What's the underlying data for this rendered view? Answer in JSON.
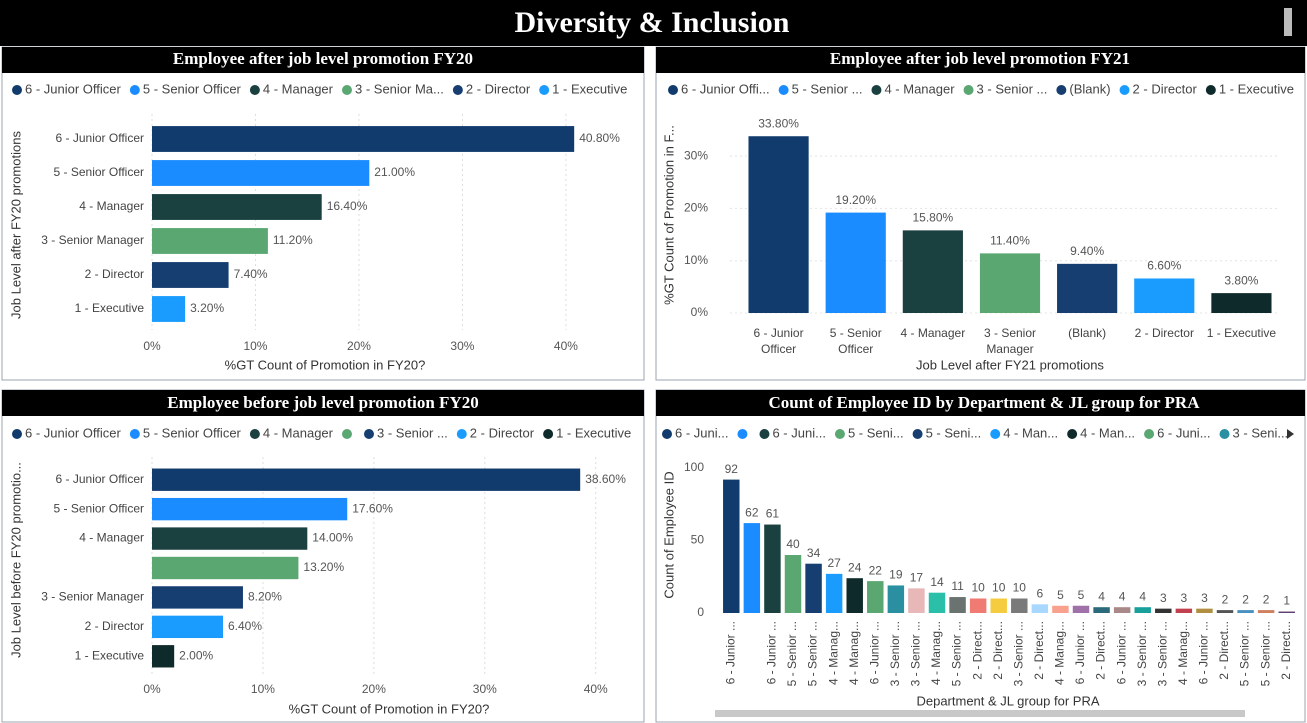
{
  "title": "Diversity & Inclusion",
  "chart_data": [
    {
      "type": "hbar",
      "title": "Employee after job level promotion FY20",
      "legend": [
        {
          "name": "6 - Junior Officer",
          "color": "#123b6d"
        },
        {
          "name": "5 - Senior Officer",
          "color": "#1a8cff"
        },
        {
          "name": "4 - Manager",
          "color": "#1b4040"
        },
        {
          "name": "3 - Senior Ma...",
          "color": "#5aa772"
        },
        {
          "name": "2 - Director",
          "color": "#163e70"
        },
        {
          "name": "1 - Executive",
          "color": "#1a9cff"
        }
      ],
      "categories": [
        "6 - Junior Officer",
        "5 - Senior Officer",
        "4 - Manager",
        "3 - Senior Manager",
        "2 - Director",
        "1 - Executive"
      ],
      "values": [
        40.8,
        21,
        16.4,
        11.2,
        7.4,
        3.2
      ],
      "value_labels": [
        "40.80%",
        "21.00%",
        "16.40%",
        "11.20%",
        "7.40%",
        "3.20%"
      ],
      "colors": [
        "#123b6d",
        "#1a8cff",
        "#1b4040",
        "#5aa772",
        "#163e70",
        "#1a9cff"
      ],
      "xlim": [
        0,
        46
      ],
      "xticks": [
        {
          "value": 0,
          "label": "0%"
        },
        {
          "value": 10,
          "label": "10%"
        },
        {
          "value": 20,
          "label": "20%"
        },
        {
          "value": 30,
          "label": "30%"
        },
        {
          "value": 40,
          "label": "40%"
        }
      ],
      "xlabel": "%GT Count of Promotion in FY20?",
      "ylabel": "Job Level after FY20 promotions",
      "grid": true
    },
    {
      "type": "vbar",
      "title": "Employee after job level promotion FY21",
      "legend": [
        {
          "name": "6 - Junior Offi...",
          "color": "#123b6d"
        },
        {
          "name": "5 - Senior ...",
          "color": "#1a8cff"
        },
        {
          "name": "4 - Manager",
          "color": "#1b4040"
        },
        {
          "name": "3 - Senior ...",
          "color": "#5aa772"
        },
        {
          "name": "(Blank)",
          "color": "#163e70"
        },
        {
          "name": "2 - Director",
          "color": "#1a9cff"
        },
        {
          "name": "1 - Executive",
          "color": "#0f2a2a"
        }
      ],
      "categories": [
        "6 - Junior Officer",
        "5 - Senior Officer",
        "4 - Manager",
        "3 - Senior Manager",
        "(Blank)",
        "2 - Director",
        "1 - Executive"
      ],
      "values": [
        33.8,
        19.2,
        15.8,
        11.4,
        9.4,
        6.6,
        3.8
      ],
      "value_labels": [
        "33.80%",
        "19.20%",
        "15.80%",
        "11.40%",
        "9.40%",
        "6.60%",
        "3.80%"
      ],
      "colors": [
        "#123b6d",
        "#1a8cff",
        "#1b4040",
        "#5aa772",
        "#163e70",
        "#1a9cff",
        "#0f2a2a"
      ],
      "ylim": [
        0,
        37
      ],
      "yticks": [
        {
          "value": 0,
          "label": "0%"
        },
        {
          "value": 10,
          "label": "10%"
        },
        {
          "value": 20,
          "label": "20%"
        },
        {
          "value": 30,
          "label": "30%"
        }
      ],
      "xlabel": "Job Level after FY21 promotions",
      "ylabel": "%GT Count of Promotion in F...",
      "grid": true
    },
    {
      "type": "hbar",
      "title": "Employee before job level promotion FY20",
      "legend": [
        {
          "name": "6 - Junior Officer",
          "color": "#123b6d"
        },
        {
          "name": "5 - Senior Officer",
          "color": "#1a8cff"
        },
        {
          "name": "4 - Manager",
          "color": "#1b4040"
        },
        {
          "name": null,
          "color": "#5aa772"
        },
        {
          "name": "3 - Senior ...",
          "color": "#163e70"
        },
        {
          "name": "2 - Director",
          "color": "#1a9cff"
        },
        {
          "name": "1 - Executive",
          "color": "#0f2a2a"
        }
      ],
      "categories": [
        "6 - Junior Officer",
        "5 - Senior Officer",
        "4 - Manager",
        null,
        "3 - Senior Manager",
        "2 - Director",
        "1 - Executive"
      ],
      "values": [
        38.6,
        17.6,
        14.0,
        13.2,
        8.2,
        6.4,
        2.0
      ],
      "value_labels": [
        "38.60%",
        "17.60%",
        "14.00%",
        "13.20%",
        "8.20%",
        "6.40%",
        "2.00%"
      ],
      "colors": [
        "#123b6d",
        "#1a8cff",
        "#1b4040",
        "#5aa772",
        "#163e70",
        "#1a9cff",
        "#0f2a2a"
      ],
      "xlim": [
        0,
        43
      ],
      "xticks": [
        {
          "value": 0,
          "label": "0%"
        },
        {
          "value": 10,
          "label": "10%"
        },
        {
          "value": 20,
          "label": "20%"
        },
        {
          "value": 30,
          "label": "30%"
        },
        {
          "value": 40,
          "label": "40%"
        }
      ],
      "xlabel": "%GT Count of Promotion in FY20?",
      "ylabel": "Job Level before FY20 promotio...",
      "grid": true
    },
    {
      "type": "column",
      "title": "Count of Employee ID by Department & JL group for PRA",
      "legend": [
        {
          "name": "6 - Juni...",
          "color": "#123b6d"
        },
        {
          "name": null,
          "color": "#1a8cff"
        },
        {
          "name": "6 - Juni...",
          "color": "#1b4040"
        },
        {
          "name": "5 - Seni...",
          "color": "#5aa772"
        },
        {
          "name": "5 - Seni...",
          "color": "#163e70"
        },
        {
          "name": "4 - Man...",
          "color": "#1a9cff"
        },
        {
          "name": "4 - Man...",
          "color": "#0f2a2a"
        },
        {
          "name": "6 - Juni...",
          "color": "#5aa772"
        },
        {
          "name": "3 - Seni...",
          "color": "#2a8fa0"
        }
      ],
      "categories": [
        "6 - Junior ...",
        null,
        "6 - Junior ...",
        "5 - Senior ...",
        "5 - Senior ...",
        "4 - Manag...",
        "4 - Manag...",
        "6 - Junior ...",
        "3 - Senior ...",
        "3 - Senior ...",
        "4 - Manag...",
        "5 - Senior ...",
        "2 - Direct...",
        "2 - Direct...",
        "3 - Senior ...",
        "2 - Direct...",
        "4 - Manag...",
        "6 - Junior ...",
        "2 - Direct...",
        "6 - Junior ...",
        "3 - Senior ...",
        "3 - Senior ...",
        "4 - Manag...",
        "6 - Junior ...",
        "2 - Direct...",
        "5 - Senior ...",
        "5 - Senior ...",
        "2 - Direct..."
      ],
      "values": [
        92,
        62,
        61,
        40,
        34,
        27,
        24,
        22,
        19,
        17,
        14,
        11,
        10,
        10,
        10,
        6,
        5,
        5,
        4,
        4,
        4,
        3,
        3,
        3,
        2,
        2,
        2,
        1
      ],
      "colors": [
        "#123b6d",
        "#1a8cff",
        "#1b4040",
        "#5aa772",
        "#163e70",
        "#1a9cff",
        "#0f2a2a",
        "#5aa772",
        "#2a8fa0",
        "#e8b8b8",
        "#2abfa8",
        "#6a7370",
        "#f07b72",
        "#f5cc40",
        "#7a7a7a",
        "#a8d8ff",
        "#f7a18e",
        "#a070a8",
        "#2a6a7a",
        "#a88888",
        "#1aa09a",
        "#333333",
        "#c04050",
        "#b09040",
        "#555555",
        "#4a90c0",
        "#d08060",
        "#604070"
      ],
      "ylim": [
        0,
        105
      ],
      "yticks": [
        0,
        50,
        100
      ],
      "xlabel": "Department & JL group for PRA",
      "ylabel": "Count of Employee ID",
      "grid": false
    }
  ]
}
